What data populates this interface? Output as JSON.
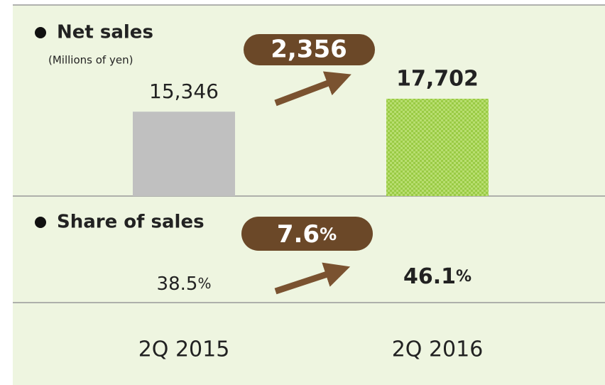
{
  "chart_data": {
    "type": "bar",
    "title": "Net sales",
    "subtitle": "(Millions of yen)",
    "categories": [
      "2Q 2015",
      "2Q 2016"
    ],
    "values": [
      15346,
      17702
    ],
    "value_labels": [
      "15,346",
      "17,702"
    ],
    "colors": [
      "#c0c0c0",
      "#a6d65a"
    ],
    "change": 2356,
    "change_label": "2,356",
    "share": {
      "title": "Share of sales",
      "values": [
        38.5,
        46.1
      ],
      "unit": "%",
      "change": 7.6
    }
  }
}
